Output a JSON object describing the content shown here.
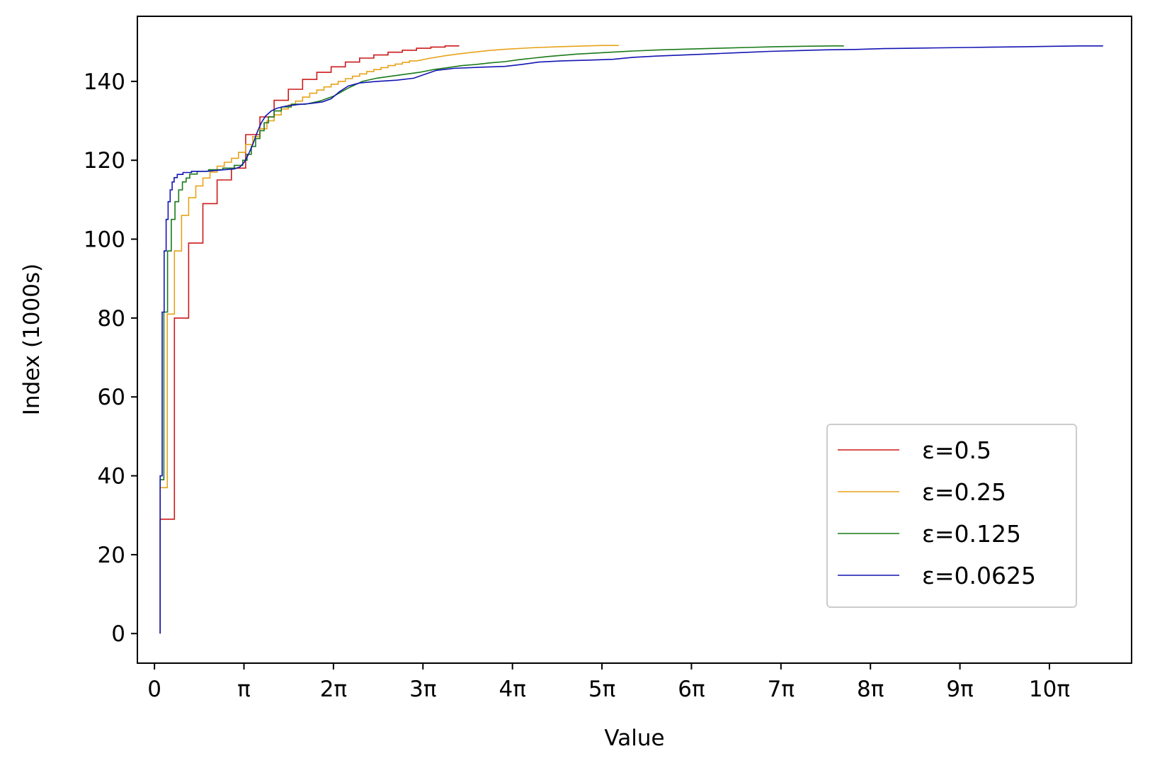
{
  "chart_data": {
    "type": "line",
    "xlabel": "Value",
    "ylabel": "Index (1000s)",
    "xlim": [
      -0.6,
      34.3
    ],
    "ylim": [
      -7.5,
      156.5
    ],
    "x_ticks": [
      {
        "value": 0,
        "label": "0"
      },
      {
        "value": 3.14159,
        "label": "π"
      },
      {
        "value": 6.28319,
        "label": "2π"
      },
      {
        "value": 9.42478,
        "label": "3π"
      },
      {
        "value": 12.56637,
        "label": "4π"
      },
      {
        "value": 15.70796,
        "label": "5π"
      },
      {
        "value": 18.84956,
        "label": "6π"
      },
      {
        "value": 21.99115,
        "label": "7π"
      },
      {
        "value": 25.13274,
        "label": "8π"
      },
      {
        "value": 28.27433,
        "label": "9π"
      },
      {
        "value": 31.41593,
        "label": "10π"
      }
    ],
    "y_ticks": [
      {
        "value": 0,
        "label": "0"
      },
      {
        "value": 20,
        "label": "20"
      },
      {
        "value": 40,
        "label": "40"
      },
      {
        "value": 60,
        "label": "60"
      },
      {
        "value": 80,
        "label": "80"
      },
      {
        "value": 100,
        "label": "100"
      },
      {
        "value": 120,
        "label": "120"
      },
      {
        "value": 140,
        "label": "140"
      }
    ],
    "legend_position": "lower-right",
    "grid": false,
    "series": [
      {
        "name": "ε=0.5",
        "color": "#cc1a1a",
        "style": "step",
        "points": [
          [
            0.2,
            0
          ],
          [
            0.2,
            29
          ],
          [
            0.7,
            29
          ],
          [
            0.7,
            80
          ],
          [
            1.2,
            80
          ],
          [
            1.2,
            99
          ],
          [
            1.7,
            99
          ],
          [
            1.7,
            109
          ],
          [
            2.2,
            109
          ],
          [
            2.2,
            115
          ],
          [
            2.7,
            115
          ],
          [
            2.7,
            118
          ],
          [
            3.2,
            118
          ],
          [
            3.2,
            126.5
          ],
          [
            3.7,
            126.5
          ],
          [
            3.7,
            131
          ],
          [
            4.2,
            131
          ],
          [
            4.2,
            135.2
          ],
          [
            4.7,
            135.2
          ],
          [
            4.7,
            138
          ],
          [
            5.2,
            138
          ],
          [
            5.2,
            140.5
          ],
          [
            5.7,
            140.5
          ],
          [
            5.7,
            142.3
          ],
          [
            6.2,
            142.3
          ],
          [
            6.2,
            143.7
          ],
          [
            6.7,
            143.7
          ],
          [
            6.7,
            144.9
          ],
          [
            7.2,
            144.9
          ],
          [
            7.2,
            145.9
          ],
          [
            7.7,
            145.9
          ],
          [
            7.7,
            146.7
          ],
          [
            8.2,
            146.7
          ],
          [
            8.2,
            147.4
          ],
          [
            8.7,
            147.4
          ],
          [
            8.7,
            147.9
          ],
          [
            9.2,
            147.9
          ],
          [
            9.2,
            148.4
          ],
          [
            9.7,
            148.4
          ],
          [
            9.7,
            148.7
          ],
          [
            10.2,
            148.7
          ],
          [
            10.2,
            149
          ],
          [
            10.7,
            149
          ]
        ]
      },
      {
        "name": "ε=0.25",
        "color": "#e8a21a",
        "style": "step",
        "points": [
          [
            0.2,
            0
          ],
          [
            0.2,
            37
          ],
          [
            0.45,
            37
          ],
          [
            0.45,
            81
          ],
          [
            0.7,
            81
          ],
          [
            0.7,
            97
          ],
          [
            0.95,
            97
          ],
          [
            0.95,
            106
          ],
          [
            1.2,
            106
          ],
          [
            1.2,
            110.5
          ],
          [
            1.45,
            110.5
          ],
          [
            1.45,
            113.5
          ],
          [
            1.7,
            113.5
          ],
          [
            1.7,
            115.5
          ],
          [
            1.95,
            115.5
          ],
          [
            1.95,
            117
          ],
          [
            2.2,
            117
          ],
          [
            2.2,
            118.5
          ],
          [
            2.45,
            118.5
          ],
          [
            2.45,
            119.5
          ],
          [
            2.7,
            119.5
          ],
          [
            2.7,
            120.5
          ],
          [
            2.95,
            120.5
          ],
          [
            2.95,
            122
          ],
          [
            3.2,
            122
          ],
          [
            3.2,
            124
          ],
          [
            3.45,
            124
          ],
          [
            3.45,
            126
          ],
          [
            3.7,
            126
          ],
          [
            3.7,
            128
          ],
          [
            3.95,
            128
          ],
          [
            3.95,
            130
          ],
          [
            4.2,
            130
          ],
          [
            4.2,
            131.5
          ],
          [
            4.45,
            131.5
          ],
          [
            4.45,
            133
          ],
          [
            4.7,
            133
          ],
          [
            4.7,
            134
          ],
          [
            4.95,
            134
          ],
          [
            4.95,
            135
          ],
          [
            5.2,
            135
          ],
          [
            5.2,
            136
          ],
          [
            5.45,
            136
          ],
          [
            5.45,
            137
          ],
          [
            5.7,
            137
          ],
          [
            5.7,
            137.8
          ],
          [
            5.95,
            137.8
          ],
          [
            5.95,
            138.6
          ],
          [
            6.2,
            138.6
          ],
          [
            6.2,
            139.3
          ],
          [
            6.45,
            139.3
          ],
          [
            6.45,
            140
          ],
          [
            6.7,
            140
          ],
          [
            6.7,
            140.7
          ],
          [
            6.95,
            140.7
          ],
          [
            6.95,
            141.3
          ],
          [
            7.2,
            141.3
          ],
          [
            7.2,
            141.9
          ],
          [
            7.45,
            141.9
          ],
          [
            7.45,
            142.5
          ],
          [
            7.7,
            142.5
          ],
          [
            7.7,
            143
          ],
          [
            7.95,
            143
          ],
          [
            7.95,
            143.5
          ],
          [
            8.2,
            143.5
          ],
          [
            8.2,
            144
          ],
          [
            8.45,
            144
          ],
          [
            8.45,
            144.4
          ],
          [
            8.7,
            144.4
          ],
          [
            8.7,
            144.8
          ],
          [
            8.95,
            144.8
          ],
          [
            8.95,
            145.2
          ],
          [
            9.2,
            145.2
          ],
          [
            9.7,
            145.9
          ],
          [
            10.2,
            146.5
          ],
          [
            10.7,
            147
          ],
          [
            11.2,
            147.4
          ],
          [
            11.7,
            147.8
          ],
          [
            12.2,
            148.1
          ],
          [
            13.2,
            148.5
          ],
          [
            14.2,
            148.8
          ],
          [
            15.7,
            149.1
          ],
          [
            16.3,
            149.1
          ]
        ]
      },
      {
        "name": "ε=0.125",
        "color": "#1a7a1a",
        "style": "step",
        "points": [
          [
            0.2,
            0
          ],
          [
            0.2,
            39
          ],
          [
            0.33,
            39
          ],
          [
            0.33,
            81.5
          ],
          [
            0.46,
            81.5
          ],
          [
            0.46,
            97
          ],
          [
            0.59,
            97
          ],
          [
            0.59,
            105
          ],
          [
            0.72,
            105
          ],
          [
            0.72,
            109.5
          ],
          [
            0.85,
            109.5
          ],
          [
            0.85,
            112.5
          ],
          [
            0.98,
            112.5
          ],
          [
            0.98,
            114.5
          ],
          [
            1.11,
            114.5
          ],
          [
            1.11,
            115.5
          ],
          [
            1.24,
            115.5
          ],
          [
            1.24,
            116.5
          ],
          [
            1.5,
            116.5
          ],
          [
            1.5,
            117.2
          ],
          [
            1.9,
            117.2
          ],
          [
            1.9,
            117.6
          ],
          [
            2.4,
            117.6
          ],
          [
            2.4,
            118
          ],
          [
            2.8,
            118
          ],
          [
            2.8,
            118.7
          ],
          [
            3.1,
            118.7
          ],
          [
            3.1,
            120
          ],
          [
            3.25,
            120
          ],
          [
            3.25,
            121.5
          ],
          [
            3.4,
            121.5
          ],
          [
            3.4,
            123.5
          ],
          [
            3.55,
            123.5
          ],
          [
            3.55,
            125.5
          ],
          [
            3.7,
            125.5
          ],
          [
            3.7,
            127.5
          ],
          [
            3.85,
            127.5
          ],
          [
            3.85,
            129.5
          ],
          [
            4.0,
            129.5
          ],
          [
            4.0,
            131
          ],
          [
            4.2,
            131
          ],
          [
            4.2,
            132.5
          ],
          [
            4.45,
            132.5
          ],
          [
            4.45,
            133.5
          ],
          [
            4.8,
            133.5
          ],
          [
            4.8,
            134.2
          ],
          [
            5.3,
            134.2
          ],
          [
            5.8,
            135
          ],
          [
            6.3,
            136.3
          ],
          [
            6.8,
            138.3
          ],
          [
            7.3,
            140
          ],
          [
            7.8,
            140.8
          ],
          [
            8.3,
            141.3
          ],
          [
            8.8,
            141.8
          ],
          [
            9.3,
            142.3
          ],
          [
            9.8,
            143
          ],
          [
            10.3,
            143.5
          ],
          [
            10.8,
            144
          ],
          [
            11.3,
            144.3
          ],
          [
            11.8,
            144.7
          ],
          [
            12.3,
            145
          ],
          [
            12.8,
            145.5
          ],
          [
            13.3,
            145.9
          ],
          [
            13.8,
            146.3
          ],
          [
            14.8,
            146.9
          ],
          [
            15.8,
            147.3
          ],
          [
            16.8,
            147.7
          ],
          [
            17.8,
            148
          ],
          [
            18.8,
            148.2
          ],
          [
            19.8,
            148.4
          ],
          [
            20.8,
            148.6
          ],
          [
            21.8,
            148.8
          ],
          [
            22.8,
            148.9
          ],
          [
            23.8,
            149
          ],
          [
            24.2,
            149
          ]
        ]
      },
      {
        "name": "ε=0.0625",
        "color": "#1414b4",
        "style": "step",
        "points": [
          [
            0.2,
            0
          ],
          [
            0.2,
            40
          ],
          [
            0.27,
            40
          ],
          [
            0.27,
            81.5
          ],
          [
            0.34,
            81.5
          ],
          [
            0.34,
            97
          ],
          [
            0.41,
            97
          ],
          [
            0.41,
            105
          ],
          [
            0.48,
            105
          ],
          [
            0.48,
            109.5
          ],
          [
            0.55,
            109.5
          ],
          [
            0.55,
            112.5
          ],
          [
            0.62,
            112.5
          ],
          [
            0.62,
            114.5
          ],
          [
            0.69,
            114.5
          ],
          [
            0.69,
            115.6
          ],
          [
            0.8,
            115.6
          ],
          [
            0.8,
            116.4
          ],
          [
            1.0,
            116.4
          ],
          [
            1.0,
            116.9
          ],
          [
            1.3,
            116.9
          ],
          [
            1.3,
            117.2
          ],
          [
            1.8,
            117.2
          ],
          [
            2.3,
            117.5
          ],
          [
            2.8,
            117.8
          ],
          [
            3.0,
            118.3
          ],
          [
            3.15,
            119.5
          ],
          [
            3.3,
            121.5
          ],
          [
            3.45,
            124
          ],
          [
            3.6,
            127
          ],
          [
            3.75,
            129.5
          ],
          [
            3.9,
            131.2
          ],
          [
            4.1,
            132.5
          ],
          [
            4.3,
            133.2
          ],
          [
            4.6,
            133.7
          ],
          [
            5.0,
            134.1
          ],
          [
            5.5,
            134.4
          ],
          [
            5.9,
            134.8
          ],
          [
            6.2,
            135.6
          ],
          [
            6.5,
            137.4
          ],
          [
            6.8,
            138.8
          ],
          [
            7.2,
            139.6
          ],
          [
            7.8,
            140
          ],
          [
            8.5,
            140.3
          ],
          [
            9.1,
            140.8
          ],
          [
            9.5,
            141.8
          ],
          [
            9.9,
            142.8
          ],
          [
            10.5,
            143.3
          ],
          [
            11.5,
            143.6
          ],
          [
            12.3,
            143.8
          ],
          [
            12.9,
            144.3
          ],
          [
            13.5,
            144.9
          ],
          [
            14.3,
            145.2
          ],
          [
            15.3,
            145.4
          ],
          [
            16.1,
            145.6
          ],
          [
            16.8,
            146.1
          ],
          [
            17.6,
            146.4
          ],
          [
            18.6,
            146.7
          ],
          [
            19.6,
            147
          ],
          [
            20.6,
            147.3
          ],
          [
            21.6,
            147.6
          ],
          [
            22.6,
            147.8
          ],
          [
            23.6,
            148
          ],
          [
            24.6,
            148.1
          ],
          [
            25.6,
            148.3
          ],
          [
            26.6,
            148.4
          ],
          [
            27.6,
            148.5
          ],
          [
            28.6,
            148.6
          ],
          [
            29.6,
            148.7
          ],
          [
            30.6,
            148.8
          ],
          [
            31.6,
            148.9
          ],
          [
            32.5,
            149
          ],
          [
            33.3,
            149
          ]
        ]
      }
    ]
  }
}
